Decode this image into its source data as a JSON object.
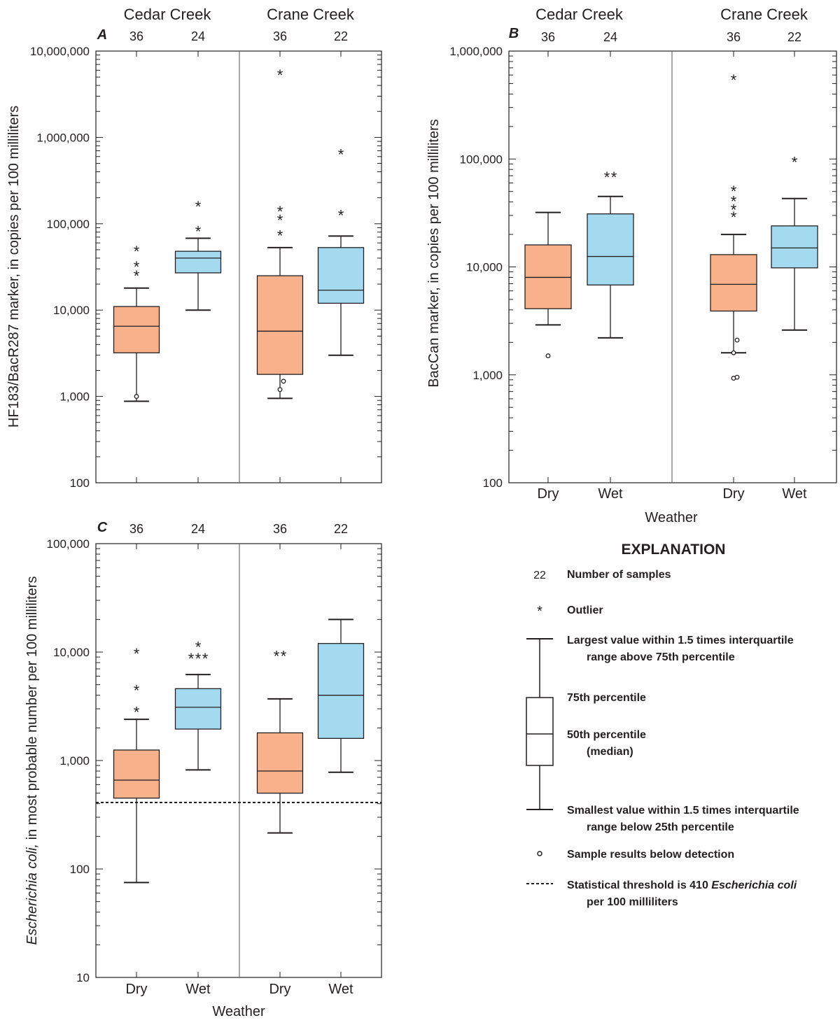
{
  "colors": {
    "dry": "#f8b18a",
    "wet": "#a3daf0",
    "line": "#231f20"
  },
  "chart_data": [
    {
      "type": "boxplot",
      "panel_label": "A",
      "sites": [
        "Cedar Creek",
        "Crane Creek"
      ],
      "categories": [
        "Dry",
        "Wet",
        "Dry",
        "Wet"
      ],
      "ylabel": "HF183/BacR287 marker, in copies per 100 milliliters",
      "xlabel": "",
      "yscale": "log",
      "ylim": [
        100,
        10000000
      ],
      "yticks": [
        100,
        1000,
        10000,
        100000,
        1000000,
        10000000
      ],
      "ytick_labels": [
        "100",
        "1,000",
        "10,000",
        "100,000",
        "1,000,000",
        "10,000,000"
      ],
      "show_categories": false,
      "show_sites": true,
      "boxes": [
        {
          "site": "Cedar Creek",
          "weather": "Dry",
          "n": "36",
          "whisker_low": 880,
          "q1": 3200,
          "median": 6500,
          "q3": 11000,
          "whisker_high": 18000,
          "outliers": [
            26000,
            33000,
            50000
          ],
          "below_detection": [
            1000
          ]
        },
        {
          "site": "Cedar Creek",
          "weather": "Wet",
          "n": "24",
          "whisker_low": 10000,
          "q1": 27000,
          "median": 40000,
          "q3": 48000,
          "whisker_high": 68000,
          "outliers": [
            85000,
            165000
          ],
          "below_detection": []
        },
        {
          "site": "Crane Creek",
          "weather": "Dry",
          "n": "36",
          "whisker_low": 950,
          "q1": 1800,
          "median": 5700,
          "q3": 25000,
          "whisker_high": 53000,
          "outliers": [
            76000,
            115000,
            145000,
            5500000
          ],
          "below_detection": [
            1200,
            1500
          ]
        },
        {
          "site": "Crane Creek",
          "weather": "Wet",
          "n": "22",
          "whisker_low": 3000,
          "q1": 12000,
          "median": 17000,
          "q3": 53000,
          "whisker_high": 72000,
          "outliers": [
            130000,
            660000
          ],
          "below_detection": []
        }
      ]
    },
    {
      "type": "boxplot",
      "panel_label": "B",
      "sites": [
        "Cedar Creek",
        "Crane Creek"
      ],
      "categories": [
        "Dry",
        "Wet",
        "Dry",
        "Wet"
      ],
      "ylabel": "BacCan marker, in copies per 100 milliliters",
      "xlabel": "Weather",
      "yscale": "log",
      "ylim": [
        100,
        1000000
      ],
      "yticks": [
        100,
        1000,
        10000,
        100000,
        1000000
      ],
      "ytick_labels": [
        "100",
        "1,000",
        "10,000",
        "100,000",
        "1,000,000"
      ],
      "show_categories": true,
      "show_sites": true,
      "boxes": [
        {
          "site": "Cedar Creek",
          "weather": "Dry",
          "n": "36",
          "whisker_low": 2900,
          "q1": 4100,
          "median": 8000,
          "q3": 16000,
          "whisker_high": 32000,
          "outliers": [],
          "below_detection": [
            1500
          ]
        },
        {
          "site": "Cedar Creek",
          "weather": "Wet",
          "n": "24",
          "whisker_low": 2200,
          "q1": 6800,
          "median": 12500,
          "q3": 31000,
          "whisker_high": 45000,
          "outliers": [
            70000,
            70000
          ],
          "below_detection": []
        },
        {
          "site": "Crane Creek",
          "weather": "Dry",
          "n": "36",
          "whisker_low": 1600,
          "q1": 3900,
          "median": 6900,
          "q3": 13000,
          "whisker_high": 20000,
          "outliers": [
            30000,
            35000,
            42000,
            52000,
            560000
          ],
          "below_detection": [
            930,
            950,
            1600,
            2100
          ]
        },
        {
          "site": "Crane Creek",
          "weather": "Wet",
          "n": "22",
          "whisker_low": 2600,
          "q1": 9800,
          "median": 15000,
          "q3": 24000,
          "whisker_high": 43000,
          "outliers": [
            97000
          ],
          "below_detection": []
        }
      ]
    },
    {
      "type": "boxplot",
      "panel_label": "C",
      "sites": [
        "Cedar Creek",
        "Crane Creek"
      ],
      "categories": [
        "Dry",
        "Wet",
        "Dry",
        "Wet"
      ],
      "ylabel_italic": "Escherichia coli,",
      "ylabel_rest": " in most probable number per 100 milliliters",
      "xlabel": "Weather",
      "yscale": "log",
      "ylim": [
        10,
        100000
      ],
      "yticks": [
        10,
        100,
        1000,
        10000,
        100000
      ],
      "ytick_labels": [
        "10",
        "100",
        "1,000",
        "10,000",
        "100,000"
      ],
      "threshold": 410,
      "show_categories": true,
      "show_sites": false,
      "boxes": [
        {
          "site": "Cedar Creek",
          "weather": "Dry",
          "n": "36",
          "whisker_low": 75,
          "q1": 450,
          "median": 660,
          "q3": 1250,
          "whisker_high": 2400,
          "outliers": [
            2900,
            4600,
            10000
          ],
          "below_detection": []
        },
        {
          "site": "Cedar Creek",
          "weather": "Wet",
          "n": "24",
          "whisker_low": 820,
          "q1": 1950,
          "median": 3100,
          "q3": 4600,
          "whisker_high": 6200,
          "outliers": [
            9000,
            9000,
            9000,
            11500
          ],
          "below_detection": []
        },
        {
          "site": "Crane Creek",
          "weather": "Dry",
          "n": "36",
          "whisker_low": 215,
          "q1": 500,
          "median": 800,
          "q3": 1800,
          "whisker_high": 3700,
          "outliers": [
            9500,
            9500
          ],
          "below_detection": []
        },
        {
          "site": "Crane Creek",
          "weather": "Wet",
          "n": "22",
          "whisker_low": 780,
          "q1": 1600,
          "median": 4000,
          "q3": 12000,
          "whisker_high": 20000,
          "outliers": [],
          "below_detection": []
        }
      ]
    }
  ],
  "explanation": {
    "title": "EXPLANATION",
    "sample_number": "22",
    "number_of_samples": "Number of samples",
    "outlier_symbol": "*",
    "outlier": "Outlier",
    "largest_line1": "Largest value within 1.5 times interquartile",
    "largest_line2": "range above 75th percentile",
    "p75": "75th percentile",
    "p50_line1": "50th percentile",
    "p50_line2": "(median)",
    "smallest_line1": "Smallest value within 1.5 times interquartile",
    "smallest_line2": "range below 25th percentile",
    "below_detection": "Sample results below detection",
    "threshold_line1_pre": "Statistical threshold is 410 ",
    "threshold_line1_italic": "Escherichia coli",
    "threshold_line2": "per 100 milliliters"
  }
}
